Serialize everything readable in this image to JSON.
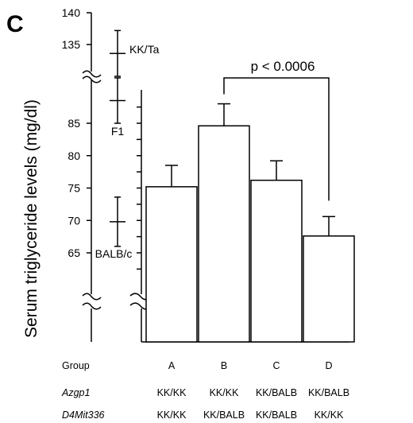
{
  "panel_label": "C",
  "chart_data": {
    "type": "bar",
    "ylabel": "Serum triglyceride levels (mg/dl)",
    "categories": [
      "A",
      "B",
      "C",
      "D"
    ],
    "values": [
      75.2,
      84.6,
      76.2,
      67.6
    ],
    "errors": [
      3.3,
      3.4,
      3.0,
      3.0
    ],
    "ylim_lower": [
      60,
      88
    ],
    "ylim_upper": [
      133,
      140
    ],
    "yticks_lower": [
      65,
      70,
      75,
      80,
      85
    ],
    "yticks_upper": [
      135,
      140
    ],
    "reference_strains": [
      {
        "name": "KK/Ta",
        "mean": 133.6,
        "err": 3.6
      },
      {
        "name": "F1",
        "mean": 88.5,
        "err": 3.5
      },
      {
        "name": "BALB/c",
        "mean": 69.8,
        "err": 3.8
      }
    ],
    "significance": {
      "from": "B",
      "to": "D",
      "label": "p < 0.0006"
    }
  },
  "table": {
    "header_label": "Group",
    "groups": [
      "A",
      "B",
      "C",
      "D"
    ],
    "rows": [
      {
        "label": "Azgp1",
        "values": [
          "KK/KK",
          "KK/KK",
          "KK/BALB",
          "KK/BALB"
        ]
      },
      {
        "label": "D4Mit336",
        "values": [
          "KK/KK",
          "KK/BALB",
          "KK/BALB",
          "KK/KK"
        ]
      }
    ]
  }
}
